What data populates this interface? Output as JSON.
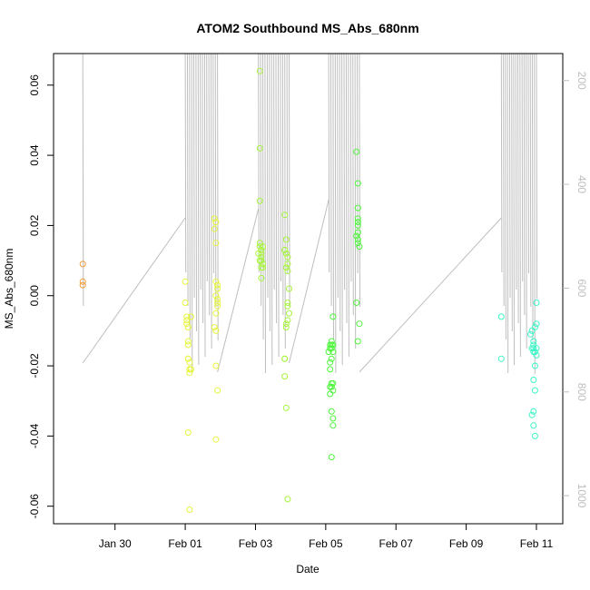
{
  "chart_data": {
    "type": "scatter",
    "title": "ATOM2 Southbound MS_Abs_680nm",
    "xlabel": "Date",
    "ylabel": "MS_Abs_680nm",
    "x_axis": {
      "type": "date",
      "range": [
        "2024-01-28T06:00",
        "2024-02-11T18:00"
      ],
      "tick_values": [
        "2024-01-30",
        "2024-02-01",
        "2024-02-03",
        "2024-02-05",
        "2024-02-07",
        "2024-02-09",
        "2024-02-11"
      ],
      "tick_labels": [
        "Jan 30",
        "Feb 01",
        "Feb 03",
        "Feb 05",
        "Feb 07",
        "Feb 09",
        "Feb 11"
      ]
    },
    "y_axis": {
      "range": [
        -0.065,
        0.069
      ],
      "ticks": [
        -0.06,
        -0.04,
        -0.02,
        0.0,
        0.02,
        0.04,
        0.06
      ],
      "tick_labels": [
        "-0.06",
        "-0.04",
        "-0.02",
        "0.00",
        "0.02",
        "0.04",
        "0.06"
      ]
    },
    "y2_axis": {
      "color": "#bebebe",
      "range": [
        1054,
        148
      ],
      "ticks": [
        200,
        400,
        600,
        800,
        1000
      ],
      "tick_labels": [
        "200",
        "400",
        "600",
        "800",
        "1000"
      ]
    },
    "grid": false,
    "legend": "none",
    "series": [
      {
        "color": "#f39c3a",
        "x": [
          "2024-01-29T02:00",
          "2024-01-29T02:00",
          "2024-01-29T02:00"
        ],
        "y": [
          0.009,
          0.004,
          0.003
        ]
      },
      {
        "color": "#e6f53c",
        "x": [
          "2024-02-01T00:00",
          "2024-02-01T00:00",
          "2024-02-01T01:00",
          "2024-02-01T01:00",
          "2024-02-01T01:00",
          "2024-02-01T02:00",
          "2024-02-01T02:00",
          "2024-02-01T02:00",
          "2024-02-01T02:00",
          "2024-02-01T03:00",
          "2024-02-01T03:00",
          "2024-02-01T03:00",
          "2024-02-01T03:00",
          "2024-02-01T02:00",
          "2024-02-01T03:00",
          "2024-02-01T04:00",
          "2024-02-01T02:00",
          "2024-02-01T04:00",
          "2024-02-01T20:00",
          "2024-02-01T21:00",
          "2024-02-01T20:00",
          "2024-02-01T21:00",
          "2024-02-01T21:00",
          "2024-02-01T22:00",
          "2024-02-01T22:00",
          "2024-02-01T21:00",
          "2024-02-01T22:00",
          "2024-02-01T22:00",
          "2024-02-01T22:00",
          "2024-02-01T20:00",
          "2024-02-01T21:00",
          "2024-02-01T21:00",
          "2024-02-01T22:00",
          "2024-02-01T21:00",
          "2024-02-01T21:00"
        ],
        "y": [
          0.004,
          -0.002,
          -0.006,
          -0.007,
          -0.008,
          -0.009,
          -0.014,
          -0.018,
          -0.018,
          -0.019,
          -0.021,
          -0.021,
          -0.022,
          -0.039,
          -0.061,
          -0.006,
          -0.013,
          -0.021,
          0.022,
          0.021,
          0.019,
          0.015,
          0.004,
          0.003,
          0.002,
          0.0,
          -0.001,
          -0.002,
          -0.003,
          -0.009,
          -0.01,
          -0.02,
          -0.027,
          -0.041,
          -0.005
        ]
      },
      {
        "color": "#a6f53c",
        "x": [
          "2024-02-03T03:00",
          "2024-02-03T03:00",
          "2024-02-03T03:00",
          "2024-02-03T03:00",
          "2024-02-03T03:00",
          "2024-02-03T04:00",
          "2024-02-03T04:00",
          "2024-02-03T04:00",
          "2024-02-03T04:00",
          "2024-02-03T05:00",
          "2024-02-03T05:00",
          "2024-02-03T05:00",
          "2024-02-03T02:00",
          "2024-02-03T03:00",
          "2024-02-03T04:00",
          "2024-02-03T04:00",
          "2024-02-03T20:00",
          "2024-02-03T21:00",
          "2024-02-03T20:00",
          "2024-02-03T21:00",
          "2024-02-03T22:00",
          "2024-02-03T22:00",
          "2024-02-03T21:00",
          "2024-02-03T22:00",
          "2024-02-03T23:00",
          "2024-02-03T22:00",
          "2024-02-03T22:00",
          "2024-02-03T23:00",
          "2024-02-03T22:00",
          "2024-02-03T21:00",
          "2024-02-03T21:00",
          "2024-02-03T20:00",
          "2024-02-03T20:00",
          "2024-02-03T20:00",
          "2024-02-03T21:00",
          "2024-02-03T22:00",
          "2024-02-03T20:00"
        ],
        "y": [
          0.064,
          0.042,
          0.027,
          0.015,
          0.014,
          0.013,
          0.012,
          0.011,
          0.01,
          0.009,
          0.008,
          0.014,
          0.012,
          0.01,
          0.008,
          0.005,
          0.023,
          0.016,
          0.013,
          0.012,
          0.011,
          0.009,
          0.008,
          0.007,
          0.002,
          -0.002,
          -0.003,
          -0.005,
          -0.007,
          -0.008,
          -0.009,
          -0.018,
          -0.018,
          -0.023,
          -0.032,
          -0.058,
          0.013
        ]
      },
      {
        "color": "#4ef53c",
        "x": [
          "2024-02-05T02:00",
          "2024-02-05T03:00",
          "2024-02-05T03:00",
          "2024-02-05T04:00",
          "2024-02-05T04:00",
          "2024-02-05T04:00",
          "2024-02-05T05:00",
          "2024-02-05T05:00",
          "2024-02-05T05:00",
          "2024-02-05T04:00",
          "2024-02-05T03:00",
          "2024-02-05T03:00",
          "2024-02-05T05:00",
          "2024-02-05T05:00",
          "2024-02-05T04:00",
          "2024-02-05T03:00",
          "2024-02-05T04:00",
          "2024-02-05T05:00",
          "2024-02-05T05:00",
          "2024-02-05T04:00",
          "2024-02-05T03:00",
          "2024-02-05T04:00",
          "2024-02-05T21:00",
          "2024-02-05T22:00",
          "2024-02-05T22:00",
          "2024-02-05T22:00",
          "2024-02-05T22:00",
          "2024-02-05T22:00",
          "2024-02-05T22:00",
          "2024-02-05T21:00",
          "2024-02-05T22:00",
          "2024-02-05T22:00",
          "2024-02-05T23:00",
          "2024-02-05T21:00",
          "2024-02-05T23:00",
          "2024-02-05T22:00"
        ],
        "y": [
          -0.016,
          -0.015,
          -0.014,
          -0.013,
          -0.014,
          -0.015,
          -0.006,
          -0.014,
          -0.016,
          -0.018,
          -0.019,
          -0.021,
          -0.025,
          -0.027,
          -0.026,
          -0.028,
          -0.033,
          -0.035,
          -0.037,
          -0.046,
          -0.026,
          -0.025,
          0.041,
          0.032,
          0.025,
          0.022,
          0.021,
          0.02,
          0.018,
          0.017,
          0.016,
          0.015,
          0.014,
          -0.002,
          -0.008,
          -0.013
        ]
      },
      {
        "color": "#3cf5c8",
        "x": [
          "2024-02-10T00:00",
          "2024-02-10T00:00",
          "2024-02-10T20:00",
          "2024-02-10T21:00",
          "2024-02-10T21:00",
          "2024-02-10T22:00",
          "2024-02-10T22:00",
          "2024-02-10T23:00",
          "2024-02-11T00:00",
          "2024-02-11T00:00",
          "2024-02-10T23:00",
          "2024-02-10T22:00",
          "2024-02-10T23:00",
          "2024-02-10T22:00",
          "2024-02-10T21:00",
          "2024-02-10T22:00",
          "2024-02-10T23:00",
          "2024-02-10T22:00",
          "2024-02-11T00:00",
          "2024-02-10T22:00",
          "2024-02-11T00:00",
          "2024-02-10T23:00"
        ],
        "y": [
          -0.006,
          -0.018,
          -0.011,
          -0.01,
          -0.015,
          -0.014,
          -0.015,
          -0.016,
          -0.017,
          -0.015,
          -0.02,
          -0.024,
          -0.027,
          -0.033,
          -0.034,
          -0.037,
          -0.04,
          -0.016,
          -0.002,
          -0.013,
          -0.008,
          -0.009
        ]
      }
    ]
  }
}
